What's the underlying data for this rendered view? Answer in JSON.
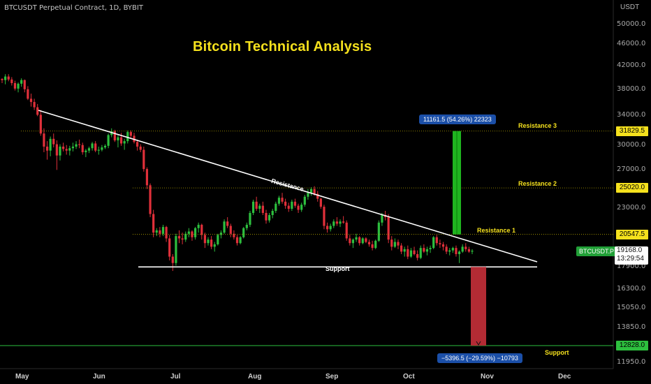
{
  "header": {
    "symbol_title": "BTCUSDT Perpetual Contract, 1D, BYBIT",
    "main_title": "Bitcoin Technical Analysis",
    "unit": "USDT"
  },
  "colors": {
    "up": "#2dbf3e",
    "down": "#e0303a",
    "tag_yellow": "#f5e11d",
    "green_tag": "#21a037"
  },
  "chart_data": {
    "type": "candlestick",
    "title": "Bitcoin Technical Analysis",
    "y_scale": "log",
    "ylim": [
      11950,
      50000
    ],
    "y_ticks": [
      50000,
      46000,
      42000,
      38000,
      34000,
      31829.5,
      30000,
      27000,
      25020,
      23000,
      20547.5,
      19168,
      17900,
      16300,
      15050,
      13850,
      12828,
      11950
    ],
    "y_tick_labels": [
      "50000.0",
      "46000.0",
      "42000.0",
      "38000.0",
      "34000.0",
      "31829.5",
      "30000.0",
      "27000.0",
      "25020.0",
      "23000.0",
      "20547.5",
      "19168.0",
      "17900.0",
      "16300.0",
      "15050.0",
      "13850.0",
      "12828.0",
      "11950.0"
    ],
    "x_ticks": [
      "May",
      "Jun",
      "Jul",
      "Aug",
      "Sep",
      "Oct",
      "Nov",
      "Dec"
    ],
    "resistance_levels": [
      {
        "name": "Resistance 3",
        "value": 31829.5
      },
      {
        "name": "Resistance 2",
        "value": 25020
      },
      {
        "name": "Resistance 1",
        "value": 20547.5
      }
    ],
    "support_level": {
      "name": "Support",
      "value": 12828
    },
    "pattern": {
      "upper_label": "Resistance",
      "lower_label": "Support",
      "support_price": 17900
    },
    "measure_up": "11161.5 (54.26%) 22323",
    "measure_down": "−5396.5 (−29.59%) −10793",
    "last": {
      "symbol": "BTCUSDT.P",
      "price": "19168.0",
      "countdown": "13:29:54"
    },
    "ohlc": [
      [
        39700,
        39800,
        39000,
        39500
      ],
      [
        39500,
        40500,
        38800,
        40100
      ],
      [
        40100,
        40500,
        39300,
        39600
      ],
      [
        39600,
        40000,
        38600,
        39000
      ],
      [
        39000,
        39400,
        37800,
        38100
      ],
      [
        38100,
        39100,
        37500,
        38900
      ],
      [
        38900,
        39800,
        38400,
        39500
      ],
      [
        39500,
        39600,
        37500,
        38000
      ],
      [
        38000,
        38500,
        36300,
        36500
      ],
      [
        36500,
        37300,
        35300,
        36000
      ],
      [
        36000,
        36500,
        34800,
        35200
      ],
      [
        35200,
        35700,
        33900,
        34100
      ],
      [
        34100,
        34800,
        31200,
        31500
      ],
      [
        31500,
        32200,
        29100,
        29800
      ],
      [
        29800,
        30500,
        28200,
        29300
      ],
      [
        29300,
        31100,
        28600,
        30800
      ],
      [
        30800,
        31500,
        29700,
        30100
      ],
      [
        30100,
        30600,
        27000,
        28700
      ],
      [
        28700,
        30100,
        28100,
        29800
      ],
      [
        29800,
        30300,
        29200,
        29500
      ],
      [
        29500,
        30000,
        28800,
        29300
      ],
      [
        29300,
        29900,
        28700,
        29600
      ],
      [
        29600,
        30300,
        29200,
        29800
      ],
      [
        29800,
        30500,
        29500,
        30100
      ],
      [
        30100,
        30700,
        29600,
        30000
      ],
      [
        30000,
        30300,
        28800,
        29100
      ],
      [
        29100,
        29500,
        28500,
        29300
      ],
      [
        29300,
        29800,
        29000,
        29600
      ],
      [
        29600,
        30400,
        29300,
        30200
      ],
      [
        30200,
        30500,
        29100,
        29300
      ],
      [
        29300,
        29800,
        28800,
        29400
      ],
      [
        29400,
        30000,
        29200,
        29700
      ],
      [
        29700,
        30100,
        29500,
        29900
      ],
      [
        29900,
        31500,
        29600,
        31300
      ],
      [
        31300,
        32200,
        31000,
        31800
      ],
      [
        31800,
        32000,
        30400,
        30600
      ],
      [
        30600,
        31300,
        29700,
        31000
      ],
      [
        31000,
        31600,
        29900,
        30200
      ],
      [
        30200,
        30800,
        29400,
        30500
      ],
      [
        30500,
        31900,
        30200,
        31700
      ],
      [
        31700,
        31900,
        30900,
        31200
      ],
      [
        31200,
        31600,
        30200,
        30400
      ],
      [
        30400,
        30700,
        29300,
        29800
      ],
      [
        29800,
        30100,
        29100,
        29400
      ],
      [
        29400,
        29800,
        26800,
        27100
      ],
      [
        27100,
        27300,
        24900,
        25300
      ],
      [
        25300,
        25500,
        22100,
        22400
      ],
      [
        22400,
        22800,
        20300,
        20700
      ],
      [
        20700,
        21100,
        20400,
        20900
      ],
      [
        20900,
        21200,
        20300,
        20600
      ],
      [
        20600,
        21400,
        20400,
        21200
      ],
      [
        21200,
        21300,
        19900,
        20200
      ],
      [
        20200,
        20500,
        18400,
        18700
      ],
      [
        18700,
        18900,
        17600,
        18200
      ],
      [
        18200,
        20600,
        18000,
        20400
      ],
      [
        20400,
        20900,
        19800,
        20200
      ],
      [
        20200,
        20700,
        19700,
        20100
      ],
      [
        20100,
        20800,
        19900,
        20600
      ],
      [
        20600,
        21100,
        20300,
        20800
      ],
      [
        20800,
        20900,
        20000,
        20300
      ],
      [
        20300,
        21200,
        20100,
        21100
      ],
      [
        21100,
        21600,
        20700,
        21400
      ],
      [
        21400,
        21500,
        20100,
        20500
      ],
      [
        20500,
        20700,
        19400,
        19800
      ],
      [
        19800,
        20300,
        19600,
        20100
      ],
      [
        20100,
        20400,
        19300,
        19500
      ],
      [
        19500,
        19900,
        19100,
        19700
      ],
      [
        19700,
        20600,
        19600,
        20500
      ],
      [
        20500,
        20900,
        20200,
        20700
      ],
      [
        20700,
        21900,
        20600,
        21700
      ],
      [
        21700,
        22100,
        21100,
        21300
      ],
      [
        21300,
        21500,
        20300,
        20600
      ],
      [
        20600,
        20900,
        20100,
        20300
      ],
      [
        20300,
        20500,
        19600,
        19800
      ],
      [
        19800,
        20400,
        19700,
        20300
      ],
      [
        20300,
        21200,
        20200,
        21100
      ],
      [
        21100,
        21600,
        20900,
        21400
      ],
      [
        21400,
        22700,
        21200,
        22500
      ],
      [
        22500,
        23800,
        22300,
        23600
      ],
      [
        23600,
        24100,
        22700,
        22900
      ],
      [
        22900,
        23400,
        22500,
        23200
      ],
      [
        23200,
        23600,
        22300,
        22500
      ],
      [
        22500,
        22800,
        21500,
        21800
      ],
      [
        21800,
        22500,
        21600,
        22300
      ],
      [
        22300,
        22900,
        22000,
        22700
      ],
      [
        22700,
        23600,
        22500,
        23400
      ],
      [
        23400,
        24200,
        23200,
        24000
      ],
      [
        24000,
        24500,
        23400,
        23600
      ],
      [
        23600,
        23900,
        22900,
        23200
      ],
      [
        23200,
        23500,
        22600,
        22900
      ],
      [
        22900,
        23800,
        22700,
        23600
      ],
      [
        23600,
        23900,
        23000,
        23200
      ],
      [
        23200,
        23400,
        22500,
        22800
      ],
      [
        22800,
        23500,
        22600,
        23300
      ],
      [
        23300,
        24300,
        23100,
        24100
      ],
      [
        24100,
        24900,
        23800,
        24500
      ],
      [
        24500,
        25100,
        24200,
        24900
      ],
      [
        24900,
        25200,
        24200,
        24400
      ],
      [
        24400,
        24700,
        23600,
        23900
      ],
      [
        23900,
        24000,
        22900,
        23100
      ],
      [
        23100,
        23300,
        21000,
        21300
      ],
      [
        21300,
        21600,
        20700,
        21000
      ],
      [
        21000,
        21500,
        20800,
        21300
      ],
      [
        21300,
        21900,
        21100,
        21700
      ],
      [
        21700,
        22100,
        21300,
        21500
      ],
      [
        21500,
        21900,
        21200,
        21700
      ],
      [
        21700,
        22200,
        21500,
        21600
      ],
      [
        21600,
        21800,
        20000,
        20200
      ],
      [
        20200,
        20500,
        19600,
        19800
      ],
      [
        19800,
        20200,
        19400,
        20100
      ],
      [
        20100,
        20600,
        19900,
        20300
      ],
      [
        20300,
        20400,
        19600,
        19800
      ],
      [
        19800,
        20300,
        19700,
        20200
      ],
      [
        20200,
        20300,
        19800,
        19900
      ],
      [
        19900,
        20100,
        19500,
        19700
      ],
      [
        19700,
        20000,
        19200,
        19400
      ],
      [
        19400,
        20100,
        19300,
        20000
      ],
      [
        20000,
        21800,
        19900,
        21600
      ],
      [
        21600,
        22500,
        21300,
        22300
      ],
      [
        22300,
        22700,
        21800,
        22100
      ],
      [
        22100,
        22400,
        19800,
        20100
      ],
      [
        20100,
        20400,
        19200,
        19500
      ],
      [
        19500,
        20200,
        19400,
        19900
      ],
      [
        19900,
        20100,
        19300,
        19600
      ],
      [
        19600,
        19800,
        18900,
        19100
      ],
      [
        19100,
        19500,
        18700,
        19300
      ],
      [
        19300,
        19600,
        18500,
        18700
      ],
      [
        18700,
        19400,
        18600,
        19200
      ],
      [
        19200,
        19500,
        18800,
        18900
      ],
      [
        18900,
        19200,
        18400,
        18600
      ],
      [
        18600,
        19600,
        18500,
        19400
      ],
      [
        19400,
        19700,
        19000,
        19100
      ],
      [
        19100,
        19500,
        18800,
        19300
      ],
      [
        19300,
        19600,
        19000,
        19400
      ],
      [
        19400,
        20400,
        19300,
        20300
      ],
      [
        20300,
        20500,
        19600,
        19800
      ],
      [
        19800,
        20100,
        19400,
        19700
      ],
      [
        19700,
        19900,
        19200,
        19500
      ],
      [
        19500,
        19700,
        18900,
        19100
      ],
      [
        19100,
        19400,
        18800,
        19200
      ],
      [
        19200,
        19500,
        19000,
        19400
      ],
      [
        19400,
        19600,
        18700,
        18900
      ],
      [
        18900,
        19200,
        18200,
        19100
      ],
      [
        19100,
        19700,
        19000,
        19500
      ],
      [
        19500,
        19800,
        19100,
        19300
      ],
      [
        19300,
        19500,
        19000,
        19100
      ],
      [
        19100,
        19300,
        18900,
        19168
      ]
    ]
  }
}
